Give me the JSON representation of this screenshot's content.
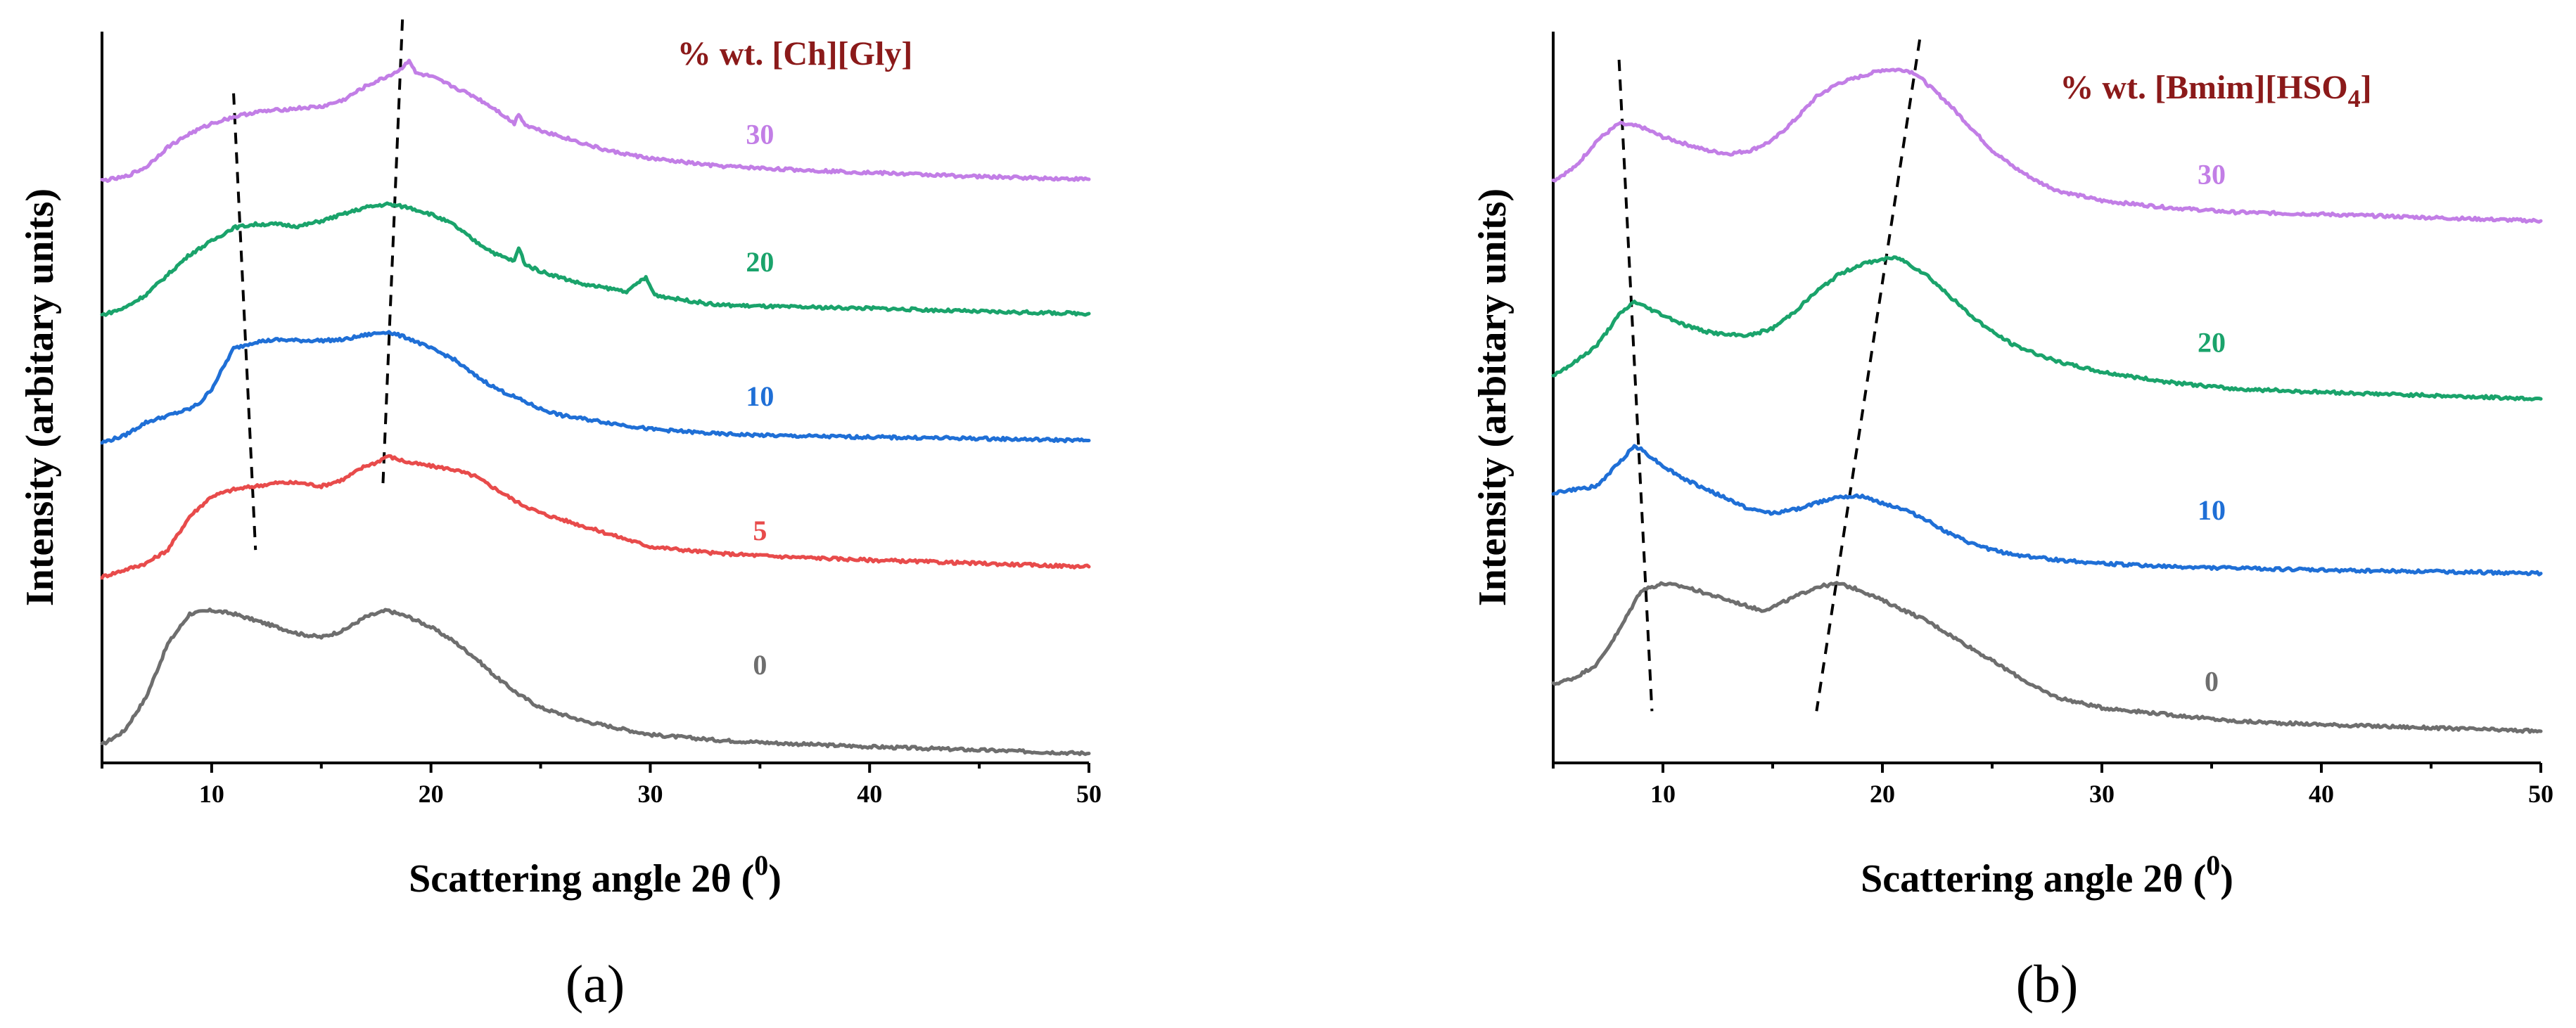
{
  "chart_data": [
    {
      "type": "line",
      "panel_label": "(a)",
      "title": "% wt. [Ch][Gly]",
      "title_color": "#8b1a1a",
      "xlabel_text": "Scattering angle 2θ (",
      "xlabel_sup": "0",
      "xlabel_close": ")",
      "ylabel": "Intensity (arbitary units)",
      "xlim": [
        5,
        50
      ],
      "ylim": [
        0,
        100
      ],
      "x_ticks": [
        10,
        20,
        30,
        40,
        50
      ],
      "x_tick_labels": [
        "10",
        "20",
        "30",
        "40",
        "50"
      ],
      "series": [
        {
          "name": "0",
          "color": "#6e6e6e",
          "label_pos": [
            35,
            8.5
          ],
          "x": [
            5,
            6,
            7,
            8,
            9,
            10,
            11,
            12,
            13,
            14,
            15,
            16,
            17,
            18,
            19,
            20,
            21,
            22,
            23,
            24,
            25,
            27,
            30,
            33,
            36,
            40,
            45,
            50
          ],
          "y": [
            -2,
            0,
            5,
            13,
            17.5,
            18,
            17.5,
            16.5,
            15.5,
            14.5,
            14,
            15,
            17,
            18,
            17,
            15.5,
            13.5,
            11,
            8,
            5.5,
            3.5,
            1.5,
            -0.5,
            -1.3,
            -1.8,
            -2.3,
            -2.8,
            -3.3
          ]
        },
        {
          "name": "5",
          "color": "#e84b4b",
          "label_pos": [
            35,
            28.5
          ],
          "x": [
            5,
            6,
            7,
            8,
            9,
            10,
            11,
            12,
            13,
            14,
            15,
            16,
            17,
            17.5,
            18,
            19,
            20,
            21,
            22,
            23,
            24,
            25,
            26,
            27,
            30,
            33,
            36,
            40,
            45,
            50
          ],
          "y": [
            23,
            24,
            25,
            27,
            32,
            35,
            36,
            36.5,
            37,
            37,
            36.5,
            37.5,
            39.5,
            40,
            41,
            40,
            39.5,
            39,
            38,
            36,
            34,
            32.5,
            31.5,
            30.5,
            27.5,
            26.5,
            26,
            25.5,
            25,
            24.5
          ]
        },
        {
          "name": "10",
          "color": "#1f6fd6",
          "label_pos": [
            35,
            48.5
          ],
          "x": [
            5,
            6,
            7,
            8,
            9,
            9.5,
            10,
            11,
            12,
            13,
            14,
            15,
            16,
            17,
            18,
            19,
            20,
            21,
            22,
            23,
            24,
            25,
            26,
            27,
            28,
            30,
            33,
            36,
            40,
            45,
            50
          ],
          "y": [
            43,
            44,
            46,
            47,
            48,
            49,
            51,
            57,
            58,
            58.3,
            58.2,
            58.2,
            58.3,
            59,
            59.5,
            58.5,
            57,
            55.5,
            53,
            51,
            49.5,
            48,
            47,
            46.5,
            46,
            45,
            44.3,
            44,
            43.8,
            43.6,
            43.3
          ]
        },
        {
          "name": "20",
          "color": "#1aa36b",
          "label_pos": [
            35,
            68.5
          ],
          "x": [
            5,
            6,
            7,
            8,
            9,
            10,
            11,
            12,
            13,
            14,
            15,
            16,
            17,
            18,
            19,
            20,
            21,
            22,
            23,
            23.8,
            24,
            24.3,
            25,
            26,
            27,
            28,
            29,
            29.5,
            29.8,
            30.2,
            31,
            33,
            36,
            40,
            45,
            50
          ],
          "y": [
            62,
            63,
            65,
            68,
            71,
            73,
            75,
            75.5,
            75.5,
            75.2,
            76,
            77,
            78,
            78.5,
            78,
            77,
            75.5,
            73,
            71,
            70,
            72,
            69.5,
            68.5,
            67.5,
            66.5,
            66,
            65.5,
            67,
            67.5,
            65,
            64.5,
            63.5,
            63.2,
            63,
            62.5,
            62.2
          ]
        },
        {
          "name": "30",
          "color": "#c27ee6",
          "label_pos": [
            35,
            87.5
          ],
          "x": [
            5,
            6,
            7,
            8,
            9,
            10,
            11,
            12,
            13,
            14,
            15,
            16,
            17,
            18,
            18.6,
            19,
            19.3,
            20,
            21,
            22,
            23,
            23.8,
            24,
            24.3,
            25,
            26,
            28,
            30,
            33,
            36,
            40,
            45,
            50
          ],
          "y": [
            82,
            82.5,
            84,
            87,
            89,
            90.5,
            91.5,
            92.2,
            92.5,
            92.8,
            93,
            94,
            96,
            97.5,
            98.5,
            100,
            98,
            97.5,
            96,
            94.5,
            92.5,
            90.5,
            92,
            90.3,
            89.5,
            88.5,
            86.5,
            85.3,
            84.2,
            83.7,
            83.2,
            82.6,
            82.2
          ]
        }
      ],
      "guides": [
        {
          "x": [
            11,
            12
          ],
          "y": [
            95,
            27
          ]
        },
        {
          "x": [
            18.7,
            17.8
          ],
          "y": [
            106,
            36
          ]
        }
      ]
    },
    {
      "type": "line",
      "panel_label": "(b)",
      "title_parts": [
        "% wt. [Bmim][HSO",
        "4",
        "]"
      ],
      "title_color": "#8b1a1a",
      "xlabel_text": "Scattering angle 2θ (",
      "xlabel_sup": "0",
      "xlabel_close": ")",
      "ylabel": "Intensity (arbitary units)",
      "xlim": [
        5,
        50
      ],
      "ylim": [
        0,
        100
      ],
      "x_ticks": [
        10,
        20,
        30,
        40,
        50
      ],
      "x_tick_labels": [
        "10",
        "20",
        "30",
        "40",
        "50"
      ],
      "series": [
        {
          "name": "0",
          "color": "#6e6e6e",
          "label_pos": [
            35,
            6
          ],
          "x": [
            5,
            6,
            7,
            8,
            9,
            10,
            11,
            12,
            13,
            14,
            14.5,
            15,
            16,
            17,
            18,
            19,
            20,
            21,
            22,
            23,
            24,
            25,
            26,
            27,
            28,
            30,
            33,
            36,
            40,
            45,
            50
          ],
          "y": [
            7,
            8,
            10,
            15,
            21,
            22,
            21.5,
            20.5,
            19.5,
            18.5,
            18,
            18.5,
            20,
            21.5,
            22,
            21,
            19.5,
            18,
            16.5,
            14.5,
            12.5,
            10.5,
            8.5,
            6.5,
            5,
            3.5,
            2.5,
            1.5,
            1,
            0.5,
            0
          ]
        },
        {
          "name": "10",
          "color": "#1f6fd6",
          "label_pos": [
            35,
            31.5
          ],
          "x": [
            5,
            6,
            7,
            8,
            8.7,
            9,
            10,
            11,
            12,
            13,
            14,
            15,
            16,
            17,
            18,
            19,
            20,
            21,
            22,
            23,
            24,
            25,
            26,
            28,
            30,
            33,
            36,
            40,
            45,
            50
          ],
          "y": [
            35.5,
            36,
            36.5,
            40,
            42.5,
            42,
            39.5,
            37.5,
            36,
            34.5,
            33,
            32.5,
            33,
            34,
            35,
            35,
            34,
            33,
            31.5,
            29.5,
            28,
            27,
            26.3,
            25.5,
            25,
            24.5,
            24.3,
            24,
            23.8,
            23.5
          ]
        },
        {
          "name": "20",
          "color": "#1aa36b",
          "label_pos": [
            35,
            56.5
          ],
          "x": [
            5,
            6,
            7,
            8,
            8.7,
            9,
            10,
            11,
            12,
            13,
            14,
            15,
            16,
            17,
            18,
            19,
            20,
            20.7,
            21,
            22,
            23,
            24,
            25,
            26,
            28,
            30,
            33,
            36,
            40,
            45,
            50
          ],
          "y": [
            53,
            55,
            57.5,
            62,
            64,
            63.5,
            62,
            60.5,
            59.5,
            59,
            59,
            60,
            62.5,
            65.5,
            68,
            69.5,
            70.3,
            70.5,
            70,
            68,
            65,
            62,
            59.5,
            57.5,
            55,
            53.5,
            52,
            51,
            50.5,
            50,
            49.5
          ]
        },
        {
          "name": "30",
          "color": "#c27ee6",
          "label_pos": [
            35,
            81.5
          ],
          "x": [
            5,
            6,
            7,
            8,
            9,
            10,
            11,
            12,
            13,
            14,
            15,
            16,
            17,
            18,
            19,
            20,
            21,
            21.5,
            22,
            23,
            24,
            25,
            26,
            27,
            28,
            30,
            33,
            36,
            40,
            45,
            50
          ],
          "y": [
            82,
            84,
            88,
            90.5,
            90,
            88.5,
            87.5,
            86.5,
            86,
            86.5,
            88,
            91,
            94.5,
            96.5,
            97.5,
            98.5,
            98.5,
            98,
            96.5,
            93.5,
            90,
            86.5,
            84,
            82,
            80.5,
            79,
            78,
            77.3,
            77,
            76.5,
            76
          ]
        }
      ],
      "guides": [
        {
          "x": [
            8,
            9.5
          ],
          "y": [
            100,
            3
          ]
        },
        {
          "x": [
            21.7,
            17
          ],
          "y": [
            103,
            3
          ]
        }
      ]
    }
  ]
}
